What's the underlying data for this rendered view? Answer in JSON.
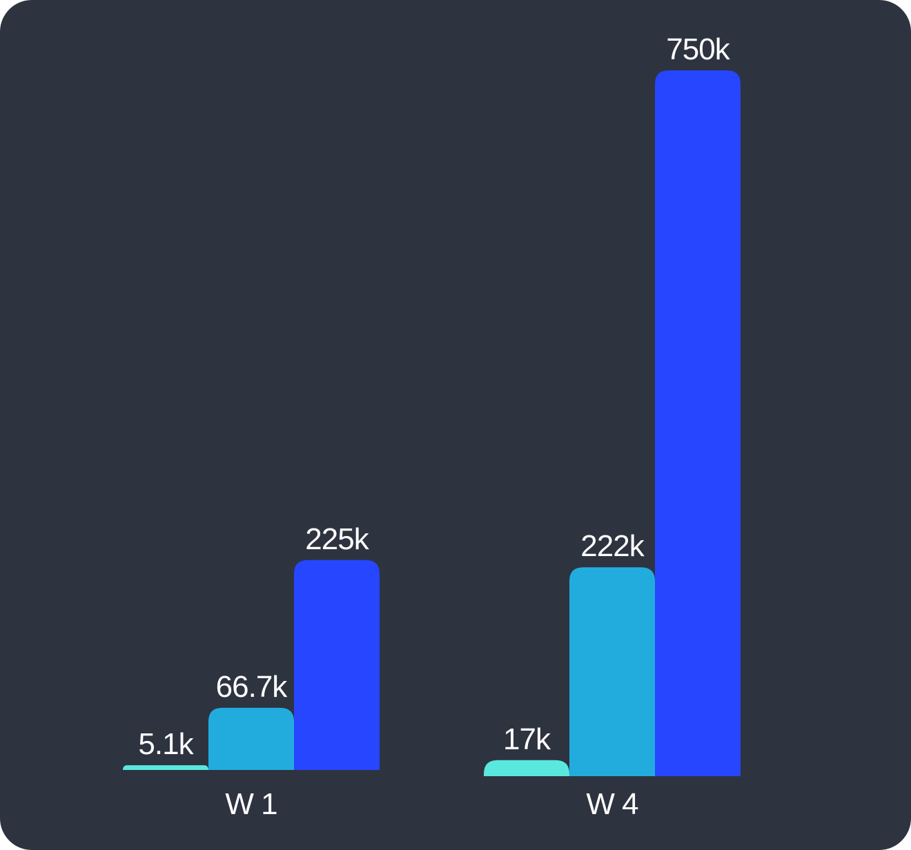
{
  "chart_data": {
    "type": "bar",
    "categories": [
      "W 1",
      "W 4"
    ],
    "series": [
      {
        "values": [
          5100,
          17000
        ],
        "labels": [
          "5.1k",
          "17k"
        ],
        "color": "#5ae8de"
      },
      {
        "values": [
          66700,
          222000
        ],
        "labels": [
          "66.7k",
          "222k"
        ],
        "color": "#22acde"
      },
      {
        "values": [
          225000,
          750000
        ],
        "labels": [
          "225k",
          "750k"
        ],
        "color": "#2746ff"
      }
    ],
    "title": "",
    "xlabel": "",
    "ylabel": "",
    "ylim": [
      0,
      750000
    ],
    "grid": false,
    "legend": "none",
    "colors": {
      "background": "#2e3340",
      "text": "#ffffff"
    }
  }
}
